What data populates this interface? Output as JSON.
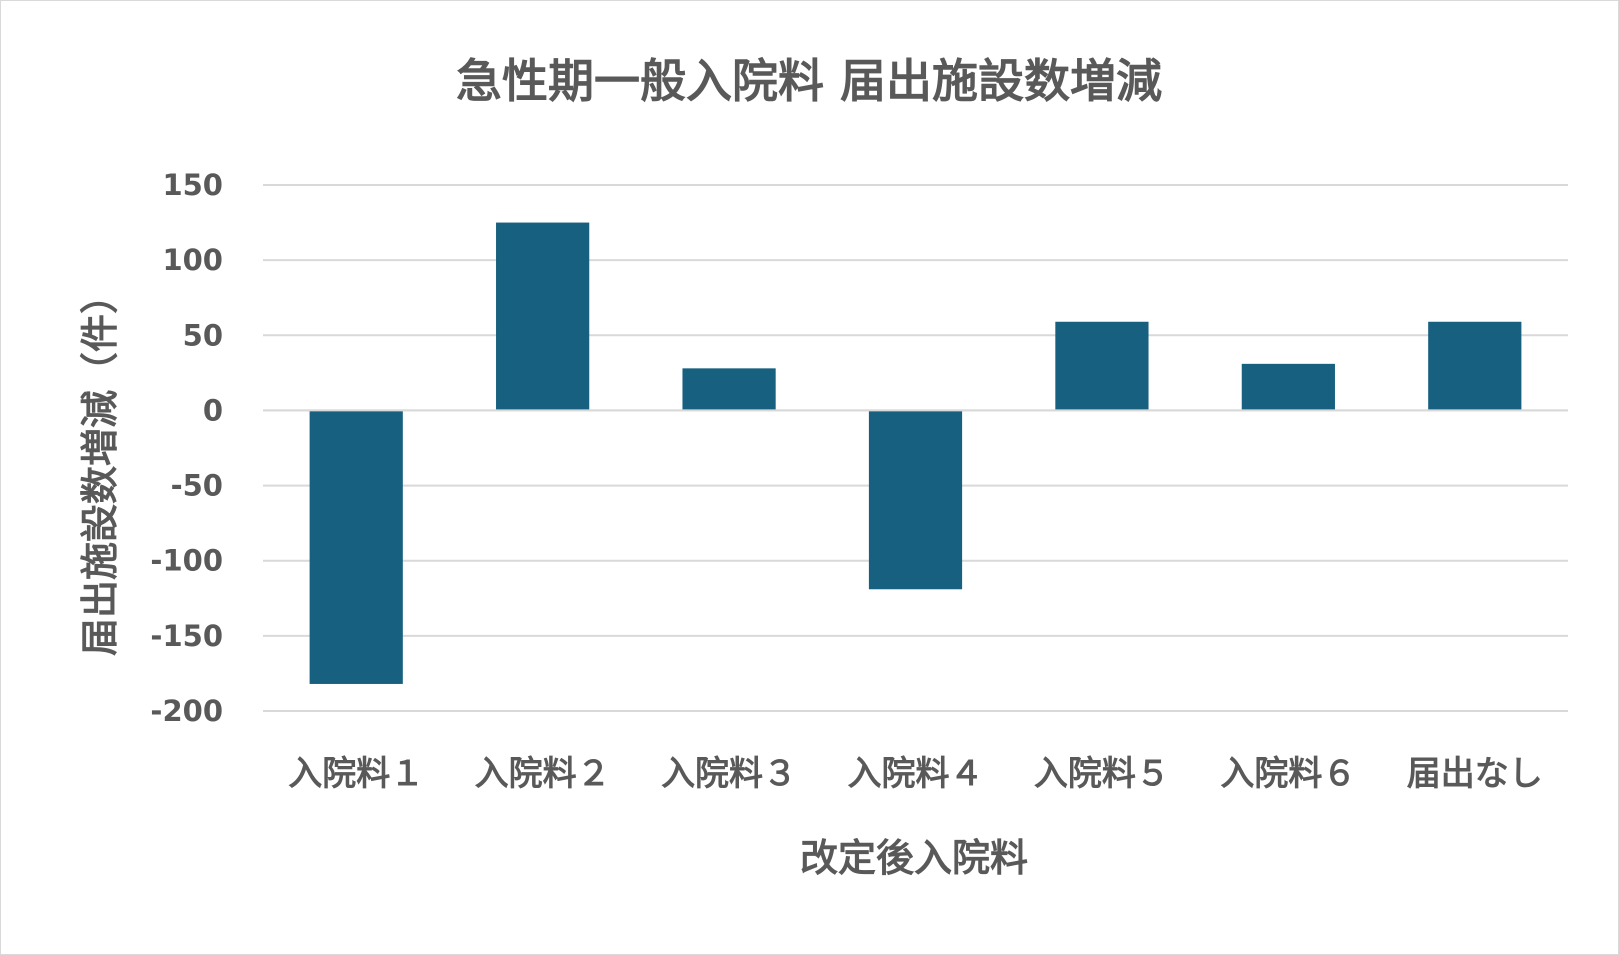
{
  "chart_data": {
    "type": "bar",
    "title": "急性期一般入院料 届出施設数増減",
    "xlabel": "改定後入院料",
    "ylabel": "届出施設数増減（件）",
    "categories": [
      "入院料１",
      "入院料２",
      "入院料３",
      "入院料４",
      "入院料５",
      "入院料６",
      "届出なし"
    ],
    "values": [
      -182,
      125,
      28,
      -119,
      59,
      31,
      59
    ],
    "ylim": [
      -200,
      150
    ],
    "yticks": [
      150,
      100,
      50,
      0,
      -50,
      -100,
      -150,
      -200
    ],
    "grid": true,
    "legend": "none",
    "bar_color": "#17607f"
  }
}
